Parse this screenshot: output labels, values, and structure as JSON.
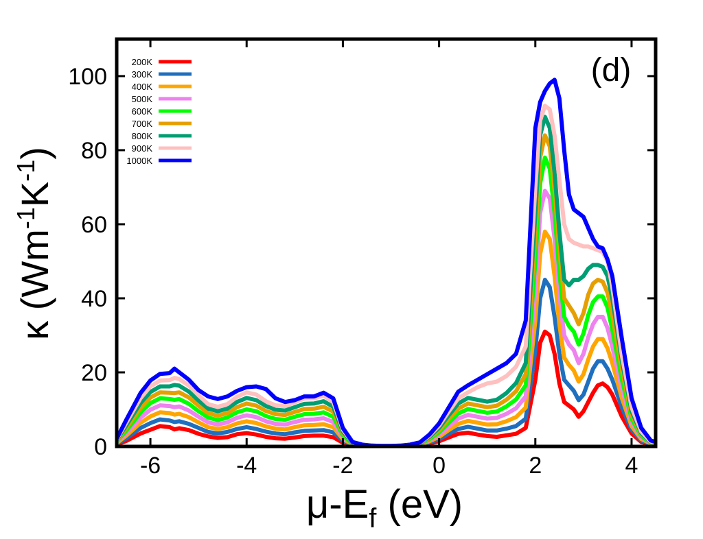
{
  "chart_data": {
    "type": "line",
    "panel_label": "(d)",
    "xlabel": {
      "main": "μ-E",
      "sub": "f",
      "unit": " (eV)"
    },
    "ylabel": {
      "kappa": "κ",
      "open": " (Wm",
      "exp1": "-1",
      "mid": "K",
      "exp2": "-1",
      "close": ")"
    },
    "xlim": [
      -6.7,
      4.5
    ],
    "ylim": [
      0,
      110
    ],
    "xticks": [
      -6,
      -4,
      -2,
      0,
      2,
      4
    ],
    "yticks": [
      0,
      20,
      40,
      60,
      80,
      100
    ],
    "x": [
      -6.7,
      -6.5,
      -6.2,
      -6.0,
      -5.8,
      -5.6,
      -5.5,
      -5.4,
      -5.2,
      -5.0,
      -4.8,
      -4.6,
      -4.4,
      -4.2,
      -4.0,
      -3.8,
      -3.6,
      -3.4,
      -3.2,
      -3.0,
      -2.8,
      -2.6,
      -2.4,
      -2.2,
      -2.0,
      -1.8,
      -1.6,
      -1.4,
      -1.2,
      -1.0,
      -0.8,
      -0.6,
      -0.4,
      -0.2,
      0.0,
      0.2,
      0.4,
      0.6,
      0.8,
      1.0,
      1.2,
      1.4,
      1.6,
      1.8,
      2.0,
      2.1,
      2.2,
      2.3,
      2.4,
      2.5,
      2.6,
      2.7,
      2.8,
      2.9,
      3.0,
      3.1,
      3.2,
      3.3,
      3.4,
      3.5,
      3.6,
      3.8,
      4.0,
      4.2,
      4.4,
      4.5
    ],
    "series": [
      {
        "name": "200K",
        "color": "#ff0000",
        "values": [
          0.5,
          1.5,
          3.5,
          4.5,
          5.5,
          5.2,
          4.6,
          4.9,
          4.4,
          3.4,
          2.7,
          2.3,
          2.5,
          3.3,
          3.6,
          3.2,
          2.6,
          2.2,
          2.1,
          2.4,
          2.8,
          2.9,
          2.9,
          2.5,
          1.0,
          0.3,
          0.1,
          0.05,
          0.03,
          0.03,
          0.05,
          0.1,
          0.3,
          0.8,
          1.4,
          2.4,
          3.4,
          3.7,
          3.2,
          2.8,
          2.6,
          3.0,
          3.4,
          5.0,
          18.0,
          28.0,
          31.0,
          30.0,
          25.0,
          17.0,
          12.0,
          11.0,
          10.0,
          8.0,
          9.5,
          12.0,
          14.5,
          16.5,
          17.0,
          16.0,
          14.0,
          8.0,
          3.5,
          1.2,
          0.5,
          0.3
        ]
      },
      {
        "name": "300K",
        "color": "#1f6fbf",
        "values": [
          0.7,
          2.2,
          5.0,
          6.3,
          7.3,
          7.0,
          6.6,
          6.8,
          6.1,
          5.0,
          3.9,
          3.5,
          3.9,
          4.7,
          5.2,
          4.7,
          4.0,
          3.5,
          3.3,
          3.8,
          4.2,
          4.3,
          4.4,
          3.8,
          1.5,
          0.4,
          0.15,
          0.08,
          0.05,
          0.05,
          0.08,
          0.15,
          0.4,
          1.1,
          2.0,
          3.4,
          4.7,
          5.3,
          4.8,
          4.3,
          4.3,
          4.8,
          5.5,
          7.5,
          26.0,
          40.0,
          45.0,
          43.0,
          35.0,
          25.0,
          18.0,
          16.5,
          15.0,
          12.5,
          14.0,
          17.5,
          21.0,
          23.0,
          23.0,
          21.0,
          18.0,
          10.5,
          4.5,
          1.6,
          0.6,
          0.4
        ]
      },
      {
        "name": "400K",
        "color": "#ffa500",
        "values": [
          0.9,
          2.9,
          6.4,
          8.1,
          9.2,
          9.0,
          8.6,
          8.8,
          7.9,
          6.5,
          5.2,
          4.7,
          5.2,
          6.2,
          6.8,
          6.3,
          5.4,
          4.8,
          4.6,
          5.2,
          5.7,
          5.8,
          6.0,
          5.2,
          2.0,
          0.6,
          0.2,
          0.1,
          0.07,
          0.07,
          0.1,
          0.2,
          0.5,
          1.4,
          2.6,
          4.4,
          6.1,
          6.9,
          6.4,
          5.9,
          6.0,
          6.8,
          7.9,
          10.5,
          34.0,
          52.0,
          58.0,
          56.0,
          46.0,
          33.0,
          24.0,
          22.0,
          20.5,
          17.5,
          19.5,
          23.5,
          27.0,
          29.0,
          29.0,
          26.5,
          22.5,
          13.0,
          5.5,
          2.0,
          0.8,
          0.5
        ]
      },
      {
        "name": "500K",
        "color": "#ee82ee",
        "values": [
          1.1,
          3.6,
          7.8,
          9.9,
          11.1,
          10.9,
          10.6,
          10.8,
          9.7,
          8.0,
          6.5,
          5.9,
          6.5,
          7.7,
          8.4,
          7.9,
          6.8,
          6.1,
          5.9,
          6.6,
          7.2,
          7.3,
          7.6,
          6.6,
          2.5,
          0.7,
          0.25,
          0.12,
          0.08,
          0.08,
          0.12,
          0.25,
          0.6,
          1.7,
          3.2,
          5.4,
          7.5,
          8.5,
          8.0,
          7.5,
          7.7,
          8.8,
          10.3,
          13.5,
          42.0,
          63.0,
          69.0,
          67.0,
          56.0,
          41.0,
          30.0,
          27.5,
          26.0,
          22.5,
          25.0,
          29.5,
          33.0,
          35.0,
          35.0,
          32.0,
          27.0,
          15.5,
          6.5,
          2.4,
          0.9,
          0.6
        ]
      },
      {
        "name": "600K",
        "color": "#00ff00",
        "values": [
          1.3,
          4.3,
          9.2,
          11.7,
          13.0,
          12.8,
          12.6,
          12.8,
          11.5,
          9.5,
          7.8,
          7.1,
          7.8,
          9.2,
          10.0,
          9.5,
          8.2,
          7.4,
          7.2,
          8.0,
          8.7,
          8.8,
          9.2,
          8.0,
          3.0,
          0.8,
          0.3,
          0.14,
          0.1,
          0.1,
          0.14,
          0.3,
          0.7,
          2.0,
          3.8,
          6.4,
          8.9,
          10.1,
          9.6,
          9.1,
          9.4,
          10.8,
          12.7,
          16.5,
          50.0,
          71.0,
          78.0,
          75.0,
          63.0,
          47.0,
          35.0,
          32.5,
          31.0,
          27.5,
          30.5,
          35.5,
          39.0,
          40.5,
          40.5,
          37.5,
          31.5,
          18.0,
          7.5,
          2.8,
          1.0,
          0.7
        ]
      },
      {
        "name": "700K",
        "color": "#e69f00",
        "values": [
          1.5,
          5.0,
          10.5,
          13.2,
          14.6,
          14.5,
          14.4,
          14.6,
          13.2,
          11.0,
          9.0,
          8.3,
          9.0,
          10.6,
          11.6,
          11.0,
          9.6,
          8.7,
          8.5,
          9.3,
          10.1,
          10.2,
          10.7,
          9.4,
          3.5,
          0.9,
          0.35,
          0.16,
          0.11,
          0.11,
          0.16,
          0.35,
          0.8,
          2.3,
          4.4,
          7.4,
          10.2,
          11.6,
          11.1,
          10.6,
          11.0,
          12.6,
          14.9,
          19.5,
          57.0,
          78.0,
          84.0,
          81.0,
          69.0,
          53.0,
          40.0,
          38.0,
          36.0,
          33.0,
          36.0,
          41.0,
          44.0,
          45.0,
          44.5,
          41.5,
          35.5,
          20.5,
          8.5,
          3.2,
          1.1,
          0.8
        ]
      },
      {
        "name": "800K",
        "color": "#009e73",
        "values": [
          1.7,
          5.7,
          11.8,
          14.7,
          16.2,
          16.2,
          16.6,
          16.4,
          14.8,
          12.4,
          10.2,
          9.5,
          10.2,
          12.0,
          13.1,
          12.5,
          10.9,
          9.9,
          9.7,
          10.6,
          11.5,
          11.6,
          12.2,
          10.7,
          4.0,
          1.0,
          0.4,
          0.18,
          0.12,
          0.12,
          0.18,
          0.4,
          0.9,
          2.6,
          5.0,
          8.4,
          11.6,
          13.1,
          12.6,
          12.1,
          12.6,
          14.4,
          17.1,
          22.5,
          63.0,
          84.0,
          89.0,
          86.0,
          74.0,
          58.0,
          45.0,
          43.5,
          45.0,
          45.0,
          46.0,
          48.0,
          49.0,
          49.0,
          48.5,
          46.0,
          40.0,
          23.0,
          9.5,
          3.6,
          1.2,
          0.9
        ]
      },
      {
        "name": "900K",
        "color": "#ffc0c0",
        "values": [
          1.9,
          6.4,
          13.1,
          16.2,
          17.8,
          17.9,
          18.5,
          18.2,
          16.4,
          13.8,
          11.4,
          10.7,
          11.4,
          13.4,
          14.6,
          14.0,
          12.2,
          11.1,
          10.9,
          11.9,
          12.9,
          13.0,
          13.7,
          12.0,
          4.5,
          1.1,
          0.45,
          0.2,
          0.13,
          0.13,
          0.2,
          0.45,
          1.0,
          2.9,
          5.6,
          9.4,
          13.0,
          14.6,
          16.0,
          17.0,
          17.5,
          19.0,
          21.5,
          27.0,
          70.0,
          88.0,
          92.0,
          91.0,
          84.0,
          72.0,
          60.0,
          56.0,
          55.0,
          54.5,
          54.0,
          54.0,
          53.5,
          53.0,
          52.5,
          50.0,
          43.0,
          24.5,
          10.5,
          4.0,
          1.3,
          1.0
        ]
      },
      {
        "name": "1000K",
        "color": "#0000ff",
        "values": [
          2.1,
          7.2,
          14.5,
          17.8,
          19.6,
          19.8,
          21.0,
          20.0,
          18.0,
          15.2,
          13.5,
          12.8,
          13.5,
          15.0,
          16.0,
          16.2,
          15.5,
          13.0,
          12.0,
          12.5,
          13.5,
          13.5,
          14.5,
          13.0,
          5.0,
          1.2,
          0.5,
          0.22,
          0.15,
          0.15,
          0.22,
          0.5,
          1.1,
          3.2,
          6.2,
          10.5,
          14.8,
          16.5,
          18.0,
          19.5,
          21.0,
          22.5,
          25.0,
          34.0,
          86.0,
          93.0,
          96.0,
          98.0,
          99.0,
          94.0,
          80.0,
          68.0,
          64.0,
          63.0,
          62.0,
          59.0,
          56.0,
          54.0,
          53.5,
          50.5,
          46.0,
          29.0,
          13.0,
          5.0,
          1.6,
          1.2
        ]
      }
    ]
  }
}
